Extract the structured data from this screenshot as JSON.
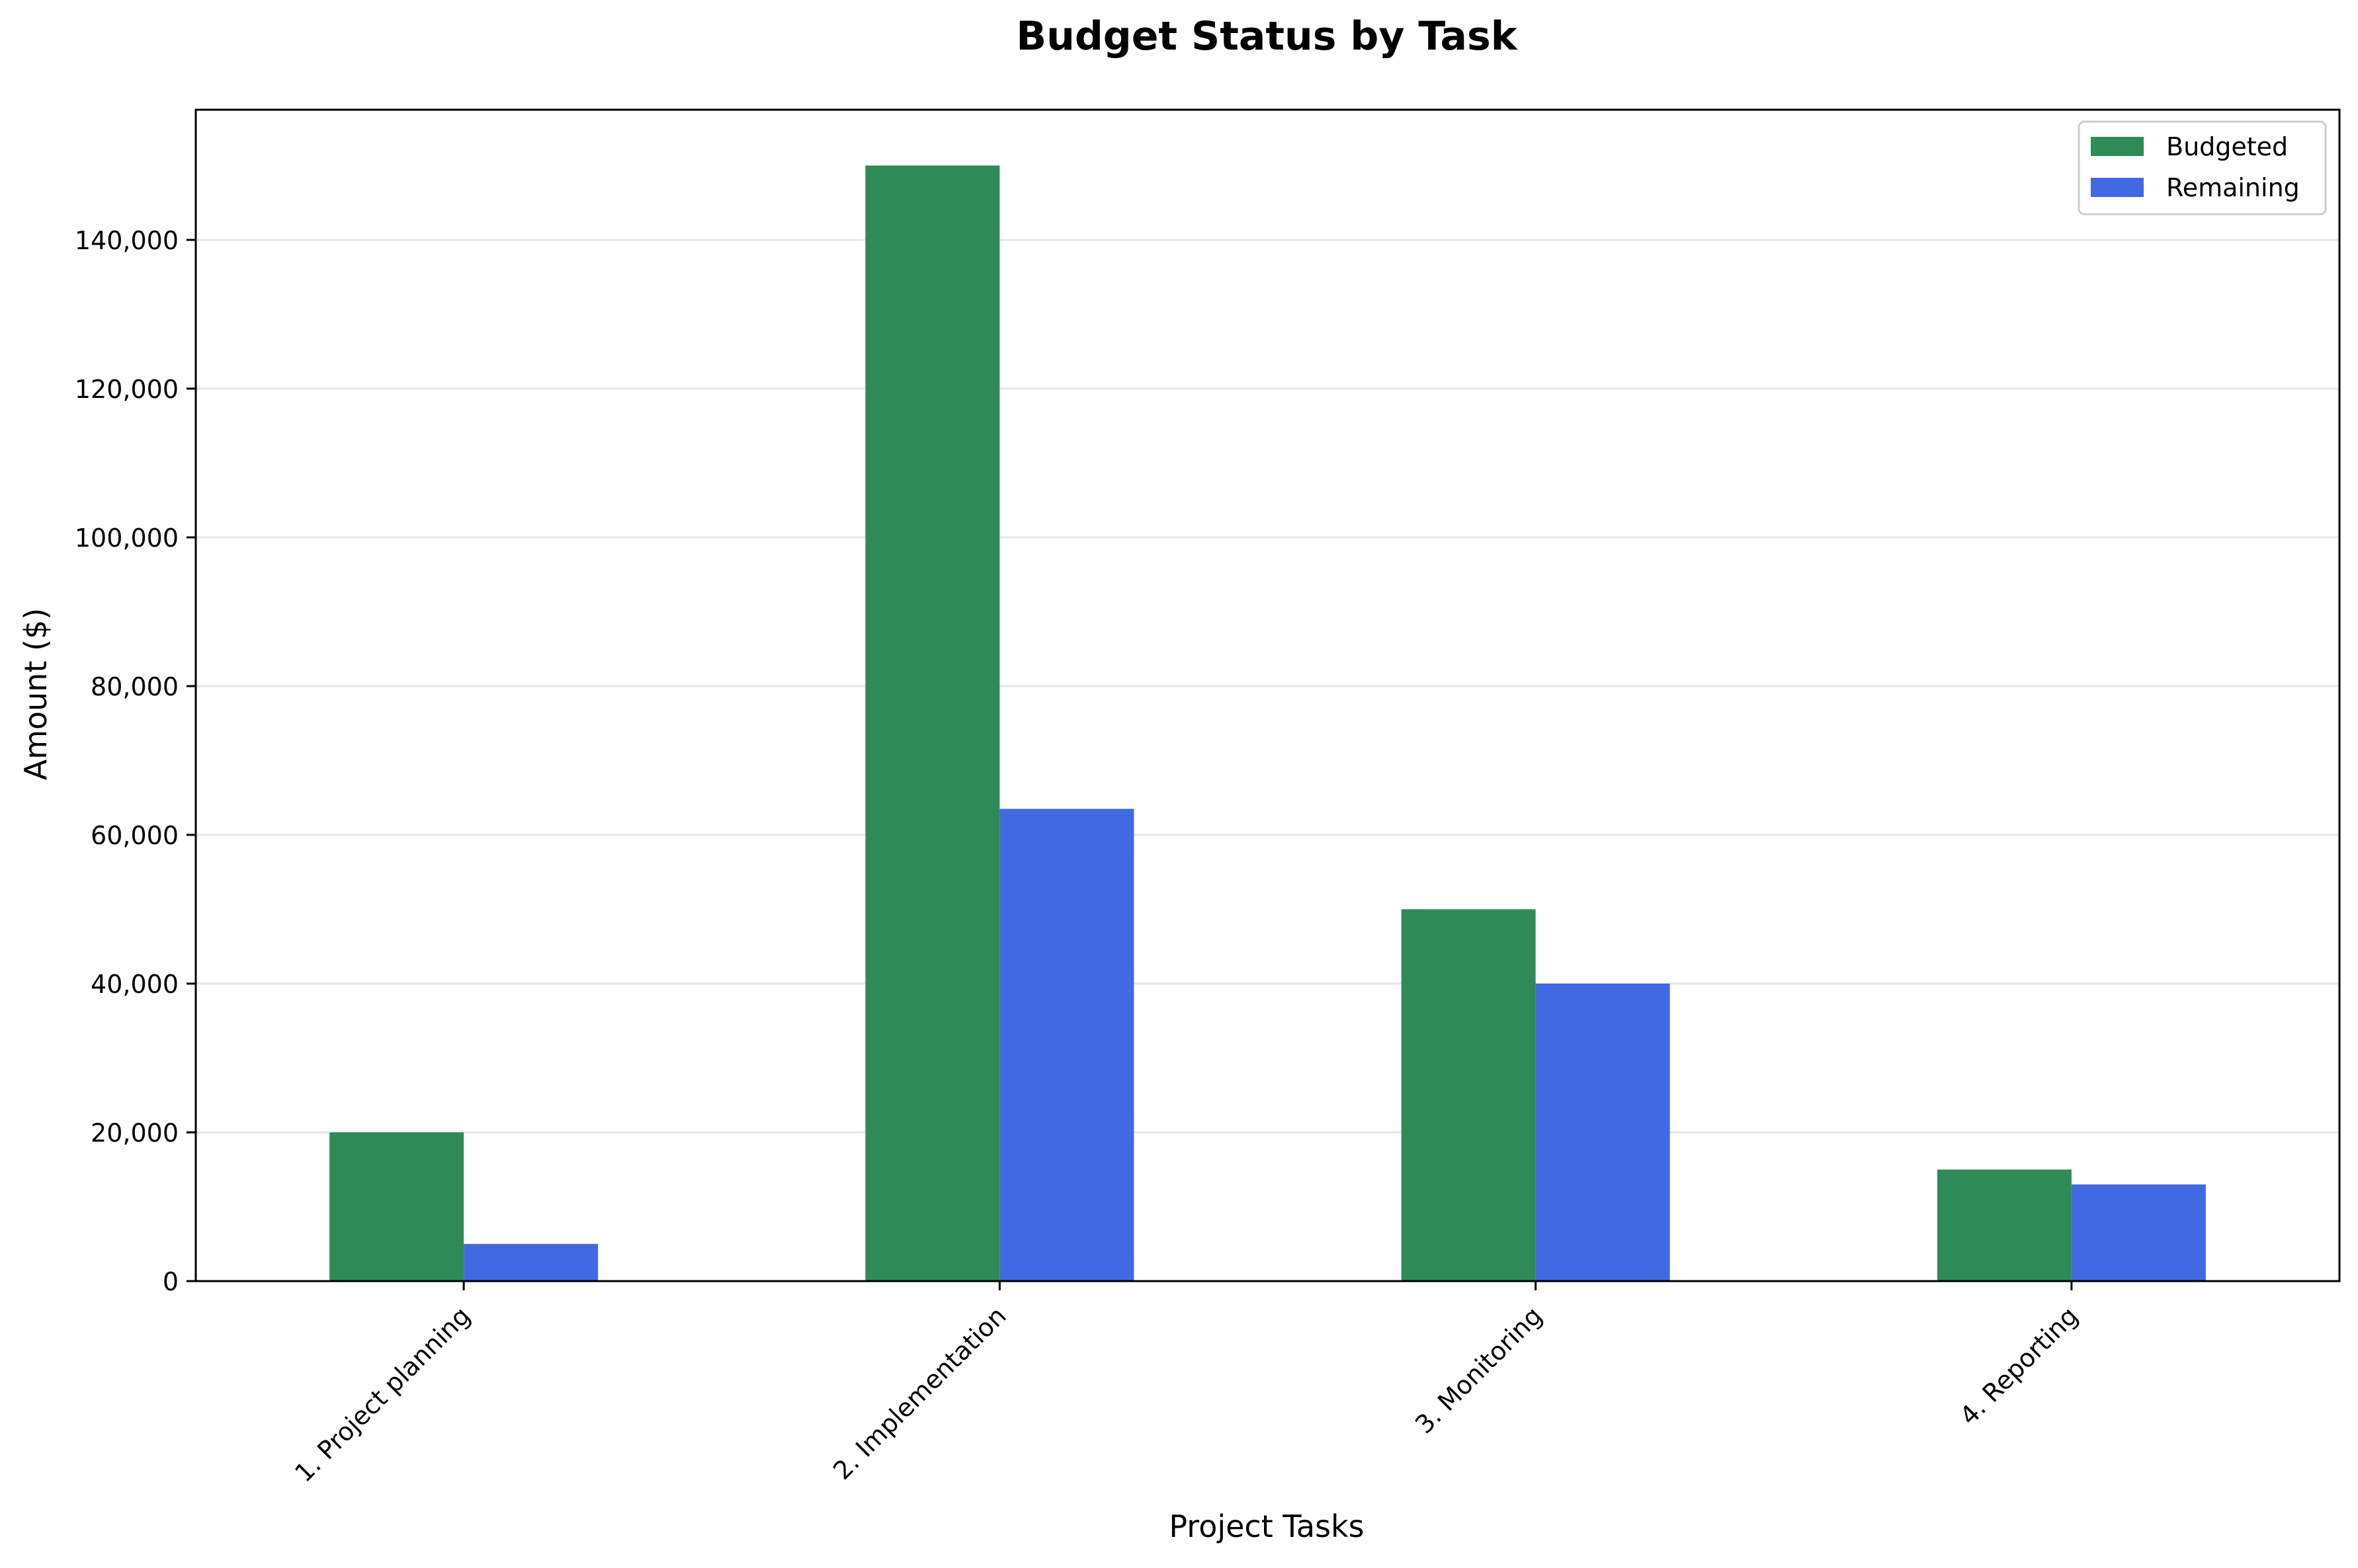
{
  "chart_data": {
    "type": "bar",
    "title": "Budget Status by Task",
    "xlabel": "Project Tasks",
    "ylabel": "Amount ($)",
    "categories": [
      "1. Project planning",
      "2. Implementation",
      "3. Monitoring",
      "4. Reporting"
    ],
    "series": [
      {
        "name": "Budgeted",
        "color": "#2e8b57",
        "values": [
          20000,
          150000,
          50000,
          15000
        ]
      },
      {
        "name": "Remaining",
        "color": "#4169e1",
        "values": [
          5000,
          63500,
          40000,
          13000
        ]
      }
    ],
    "ylim": [
      0,
      157500
    ],
    "yticks": [
      0,
      20000,
      40000,
      60000,
      80000,
      100000,
      120000,
      140000
    ],
    "ytick_labels": [
      "0",
      "20,000",
      "40,000",
      "60,000",
      "80,000",
      "100,000",
      "120,000",
      "140,000"
    ],
    "grid": "horizontal",
    "legend_position": "top-right"
  }
}
